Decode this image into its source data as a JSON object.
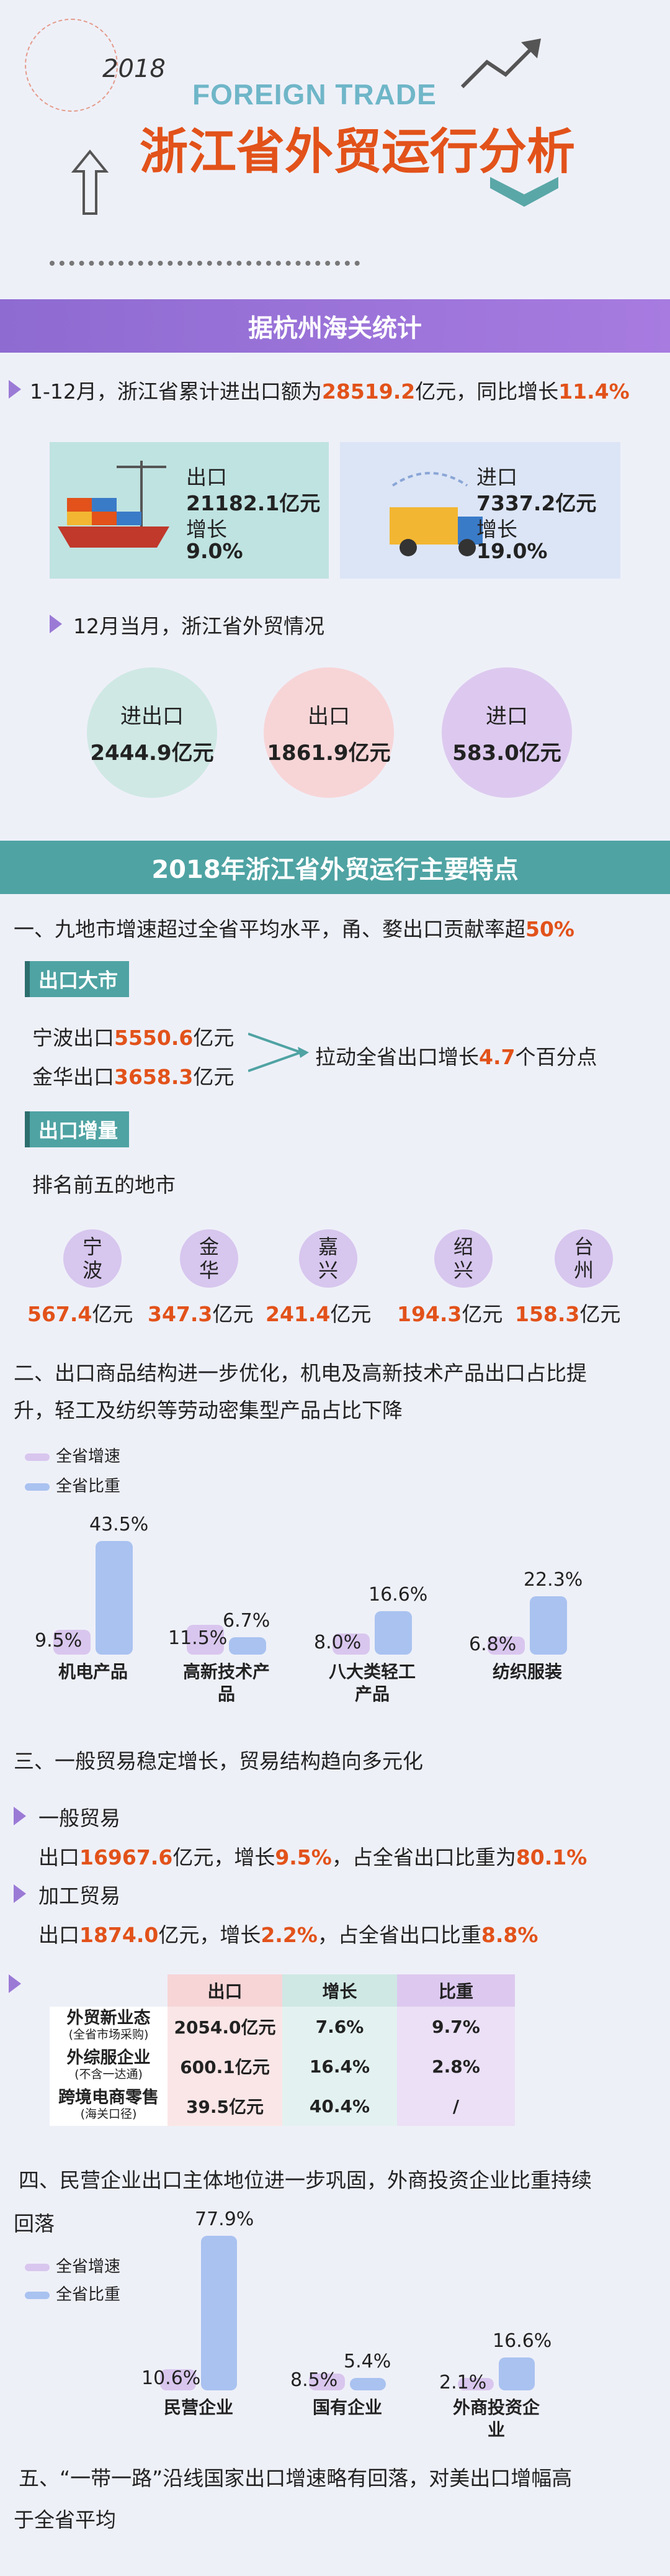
{
  "header": {
    "year": "2018",
    "en_title": "FOREIGN TRADE",
    "cn_title": "浙江省外贸运行分析"
  },
  "section1": {
    "title": "据杭州海关统计",
    "summary_prefix": "1-12月，浙江省累计进出口额为",
    "summary_total": "28519.2",
    "summary_mid": "亿元，同比增长",
    "summary_growth": "11.4%",
    "export_card": {
      "label": "出口",
      "value": "21182.1亿元",
      "growth_label": "增长",
      "growth": "9.0%"
    },
    "import_card": {
      "label": "进口",
      "value": "7337.2亿元",
      "growth_label": "增长",
      "growth": "19.0%"
    },
    "dec_title": "12月当月，浙江省外贸情况",
    "dec": [
      {
        "label": "进出口",
        "value": "2444.9亿元",
        "color": "#cfe8e4"
      },
      {
        "label": "出口",
        "value": "1861.9亿元",
        "color": "#f7d5d7"
      },
      {
        "label": "进口",
        "value": "583.0亿元",
        "color": "#ddc9ef"
      }
    ]
  },
  "section2": {
    "title": "2018年浙江省外贸运行主要特点",
    "point1_prefix": "一、九地市增速超过全省平均水平，甬、婺出口贡献率超",
    "point1_val": "50%",
    "tag1": "出口大市",
    "ningbo_prefix": "宁波出口",
    "ningbo_val": "5550.6",
    "ningbo_unit": "亿元",
    "jinhua_prefix": "金华出口",
    "jinhua_val": "3658.3",
    "jinhua_unit": "亿元",
    "pull_prefix": "拉动全省出口增长",
    "pull_val": "4.7",
    "pull_suffix": "个百分点",
    "tag2": "出口增量",
    "top5_title": "排名前五的地市",
    "cities": [
      {
        "name": "宁波",
        "value": "567.4",
        "unit": "亿元"
      },
      {
        "name": "金华",
        "value": "347.3",
        "unit": "亿元"
      },
      {
        "name": "嘉兴",
        "value": "241.4",
        "unit": "亿元"
      },
      {
        "name": "绍兴",
        "value": "194.3",
        "unit": "亿元"
      },
      {
        "name": "台州",
        "value": "158.3",
        "unit": "亿元"
      }
    ],
    "point2_line1": "二、出口商品结构进一步优化，机电及高新技术产品出口占比提",
    "point2_line2": "升，轻工及纺织等劳动密集型产品占比下降",
    "legend_growth": "全省增速",
    "legend_share": "全省比重",
    "point3": "三、一般贸易稳定增长，贸易结构趋向多元化",
    "general_title": "一般贸易",
    "general_prefix": "出口",
    "general_val": "16967.6",
    "general_mid": "亿元，增长",
    "general_growth": "9.5%",
    "general_mid2": "，占全省出口比重为",
    "general_share": "80.1%",
    "process_title": "加工贸易",
    "process_prefix": "出口",
    "process_val": "1874.0",
    "process_mid": "亿元，增长",
    "process_growth": "2.2%",
    "process_mid2": "，占全省出口比重",
    "process_share": "8.8%",
    "table": {
      "headers": [
        "出口",
        "增长",
        "比重"
      ],
      "rows": [
        {
          "name": "外贸新业态",
          "sub": "(全省市场采购)",
          "export": "2054.0亿元",
          "growth": "7.6%",
          "share": "9.7%"
        },
        {
          "name": "外综服企业",
          "sub": "(不含一达通)",
          "export": "600.1亿元",
          "growth": "16.4%",
          "share": "2.8%"
        },
        {
          "name": "跨境电商零售",
          "sub": "(海关口径)",
          "export": "39.5亿元",
          "growth": "40.4%",
          "share": "/"
        }
      ]
    },
    "point4_line1": "四、民营企业出口主体地位进一步巩固，外商投资企业比重持续",
    "point4_line2": "回落",
    "point5_line1": "五、“一带一路”沿线国家出口增速略有回落，对美出口增幅高",
    "point5_line2": "于全省平均"
  },
  "chart_data": [
    {
      "type": "bar",
      "categories": [
        "机电产品",
        "高新技术产品",
        "八大类轻工产品",
        "纺织服装"
      ],
      "series": [
        {
          "name": "全省增速",
          "values": [
            9.5,
            11.5,
            8.0,
            6.8
          ]
        },
        {
          "name": "全省比重",
          "values": [
            43.5,
            6.7,
            16.6,
            22.3
          ]
        }
      ],
      "labels": [
        [
          "9.5%",
          "43.5%"
        ],
        [
          "11.5%",
          "6.7%"
        ],
        [
          "8.0%",
          "16.6%"
        ],
        [
          "6.8%",
          "22.3%"
        ]
      ]
    },
    {
      "type": "bar",
      "categories": [
        "民营企业",
        "国有企业",
        "外商投资企业"
      ],
      "series": [
        {
          "name": "全省增速",
          "values": [
            10.6,
            8.5,
            2.1
          ]
        },
        {
          "name": "全省比重",
          "values": [
            77.9,
            5.4,
            16.6
          ]
        }
      ],
      "labels": [
        [
          "10.6%",
          "77.9%"
        ],
        [
          "8.5%",
          "5.4%"
        ],
        [
          "2.1%",
          "16.6%"
        ]
      ]
    }
  ]
}
